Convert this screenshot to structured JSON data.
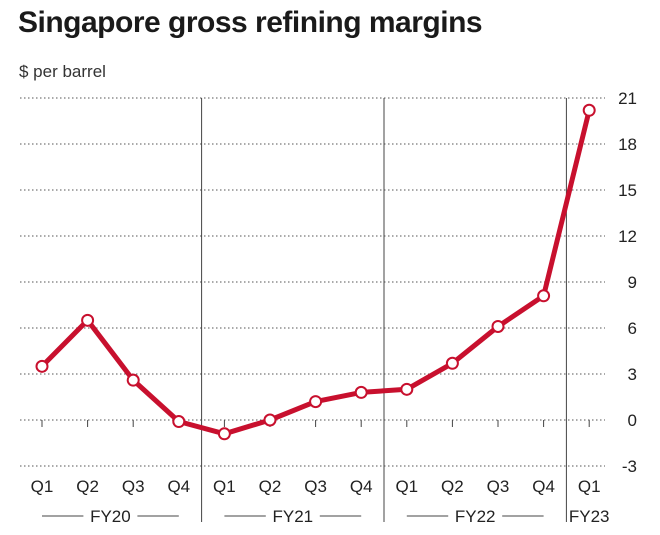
{
  "chart_data": {
    "type": "line",
    "title": "Singapore gross refining margins",
    "ylabel": "$ per barrel",
    "xlabel": "",
    "categories": [
      "Q1",
      "Q2",
      "Q3",
      "Q4",
      "Q1",
      "Q2",
      "Q3",
      "Q4",
      "Q1",
      "Q2",
      "Q3",
      "Q4",
      "Q1"
    ],
    "groups": [
      {
        "label": "FY20",
        "start": 0,
        "end": 3
      },
      {
        "label": "FY21",
        "start": 4,
        "end": 7
      },
      {
        "label": "FY22",
        "start": 8,
        "end": 11
      },
      {
        "label": "FY23",
        "start": 12,
        "end": 12
      }
    ],
    "values": [
      3.5,
      6.5,
      2.6,
      -0.1,
      -0.9,
      0.0,
      1.2,
      1.8,
      2.0,
      3.7,
      6.1,
      8.1,
      20.2
    ],
    "ylim": [
      -3,
      21
    ],
    "yticks": [
      -3,
      0,
      3,
      6,
      9,
      12,
      15,
      18,
      21
    ],
    "y_axis_position": "right",
    "grid": "horizontal dotted",
    "line_color": "#c8102e",
    "marker_fill": "#ffffff"
  }
}
